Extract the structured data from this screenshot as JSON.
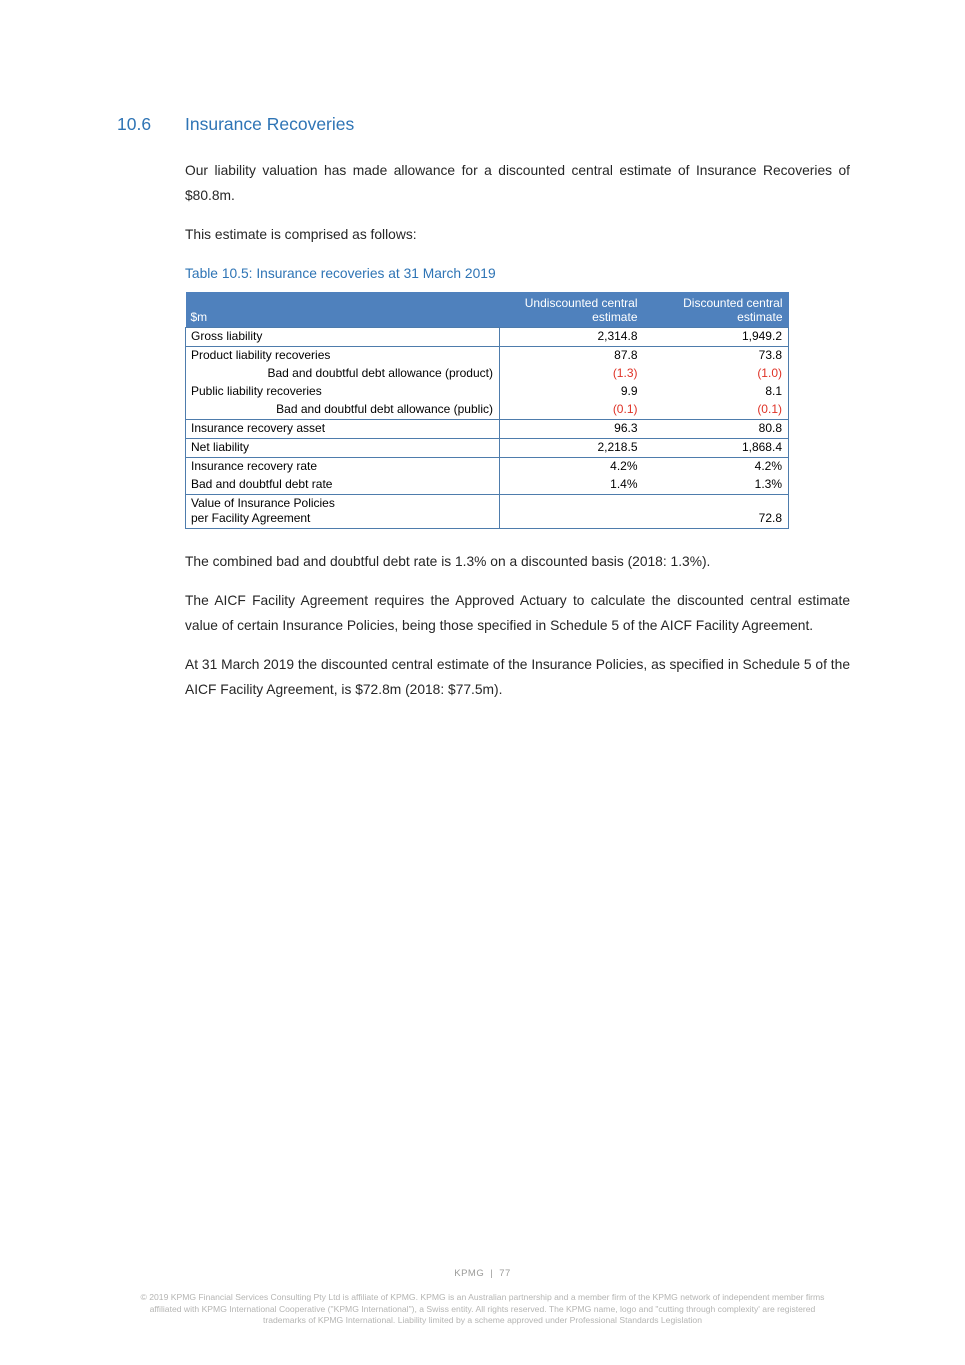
{
  "colors": {
    "accent_blue": "#2E74B5",
    "table_header_fill": "#4F81BD",
    "table_border": "#4E7CAC",
    "negative_red": "#DF3226",
    "body_text": "#262626",
    "footer_text": "#A9A9A7"
  },
  "section": {
    "number": "10.6",
    "title": "Insurance Recoveries"
  },
  "intro": {
    "para1": "Our liability valuation has made allowance for a discounted central estimate of Insurance Recoveries of $80.8m.",
    "para2": "This estimate is comprised as follows:"
  },
  "table": {
    "caption": "Table 10.5: Insurance recoveries at 31 March 2019",
    "unit_header": "$m",
    "col1_header": "Undiscounted central estimate",
    "col2_header": "Discounted central estimate",
    "rows": [
      {
        "label": "Gross liability",
        "undiscounted": "2,314.8",
        "discounted": "1,949.2",
        "indent": false,
        "negative": false,
        "rule_below": true
      },
      {
        "label": "Product liability recoveries",
        "undiscounted": "87.8",
        "discounted": "73.8",
        "indent": false,
        "negative": false,
        "rule_below": false
      },
      {
        "label": "Bad and doubtful debt allowance (product)",
        "undiscounted": "(1.3)",
        "discounted": "(1.0)",
        "indent": true,
        "negative": true,
        "rule_below": false
      },
      {
        "label": "Public liability recoveries",
        "undiscounted": "9.9",
        "discounted": "8.1",
        "indent": false,
        "negative": false,
        "rule_below": false
      },
      {
        "label": "Bad and doubtful debt allowance (public)",
        "undiscounted": "(0.1)",
        "discounted": "(0.1)",
        "indent": true,
        "negative": true,
        "rule_below": true
      },
      {
        "label": "Insurance recovery asset",
        "undiscounted": "96.3",
        "discounted": "80.8",
        "indent": false,
        "negative": false,
        "rule_below": true
      },
      {
        "label": "Net liability",
        "undiscounted": "2,218.5",
        "discounted": "1,868.4",
        "indent": false,
        "negative": false,
        "rule_below": true
      },
      {
        "label": "Insurance recovery rate",
        "undiscounted": "4.2%",
        "discounted": "4.2%",
        "indent": false,
        "negative": false,
        "rule_below": false
      },
      {
        "label": "Bad and doubtful debt rate",
        "undiscounted": "1.4%",
        "discounted": "1.3%",
        "indent": false,
        "negative": false,
        "rule_below": true
      },
      {
        "label": "Value of Insurance Policies",
        "label_line2": "per Facility Agreement",
        "undiscounted": "",
        "discounted": "72.8",
        "indent": false,
        "negative": false,
        "rule_below": true
      }
    ]
  },
  "closing": {
    "para1": "The combined bad and doubtful debt rate is 1.3% on a discounted basis (2018: 1.3%).",
    "para2": "The AICF Facility Agreement requires the Approved Actuary to calculate the discounted central estimate value of certain Insurance Policies, being those specified in Schedule 5 of the AICF Facility Agreement.",
    "para3": "At 31 March 2019 the discounted central estimate of the Insurance Policies, as specified in Schedule 5 of the AICF Facility Agreement, is $72.8m (2018: $77.5m)."
  },
  "footer": {
    "brand": "KPMG",
    "separator": "|",
    "page_number": "77",
    "legal_lines": [
      "© 2019 KPMG Financial Services Consulting Pty Ltd is affiliate of KPMG. KPMG is an Australian partnership and a member firm of the KPMG network of independent member firms",
      "affiliated with KPMG International Cooperative (\"KPMG International\"), a Swiss entity. All rights reserved. The KPMG name, logo and \"cutting through complexity' are registered",
      "trademarks of KPMG International. Liability limited by a scheme approved under Professional Standards Legislation"
    ]
  }
}
